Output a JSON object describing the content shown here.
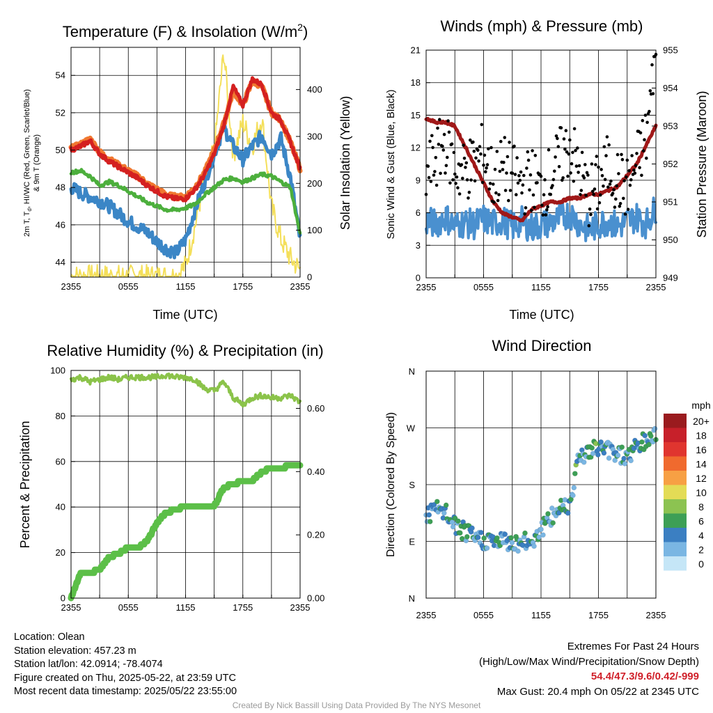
{
  "charts": {
    "temperature": {
      "title": "Temperature (F) & Insolation (W/m",
      "title_sup": "2",
      "title_close": ")",
      "ylabel_left_line1": "2m T, T",
      "ylabel_left_sub": "d",
      "ylabel_left_line1_rest": ", HI/WC (Red, Green, Scarlet/Blue)",
      "ylabel_left_line2": "& 9m T (Orange)",
      "ylabel_right": "Solar Insolation (Yellow)",
      "xlabel": "Time (UTC)"
    },
    "winds": {
      "title": "Winds (mph) & Pressure (mb)",
      "ylabel_left": "Sonic Wind & Gust (Blue, Black)",
      "ylabel_right": "Station Pressure (Maroon)",
      "xlabel": "Time (UTC)"
    },
    "humidity": {
      "title": "Relative Humidity (%) & Precipitation (in)",
      "ylabel_left": "Percent & Precipitation"
    },
    "direction": {
      "title": "Wind Direction",
      "ylabel_left": "Direction (Colored By Speed)",
      "legend_title": "mph"
    }
  },
  "colors": {
    "temp": "#d42020",
    "nine_m": "#f07830",
    "dewpoint": "#4caf3c",
    "heat_index": "#3b86c6",
    "solar": "#f4df5a",
    "wind": "#4a90cf",
    "gust": "#000000",
    "pressure": "#a01818",
    "rh": "#8bc34a",
    "precip": "#5cbf48"
  },
  "chart_data": [
    {
      "type": "line",
      "name": "temperature",
      "x_ticks": [
        "2355",
        "0555",
        "1155",
        "1755",
        "2355"
      ],
      "y_left_ticks": [
        "44",
        "46",
        "48",
        "50",
        "52",
        "54"
      ],
      "y_left_range": [
        43.2,
        55.5
      ],
      "y_right_ticks": [
        "0",
        "100",
        "200",
        "300",
        "400"
      ],
      "y_right_range": [
        0,
        490
      ],
      "x_hours": [
        0,
        1,
        2,
        3,
        4,
        5,
        6,
        7,
        8,
        9,
        10,
        11,
        12,
        13,
        14,
        15,
        16,
        17,
        18,
        19,
        20,
        21,
        22,
        23,
        24
      ],
      "series": [
        {
          "key": "temp",
          "axis": "left",
          "values": [
            50.0,
            50.2,
            50.5,
            49.8,
            49.4,
            49.1,
            48.8,
            48.5,
            48.1,
            47.8,
            47.5,
            47.4,
            47.4,
            47.9,
            48.7,
            49.8,
            51.3,
            53.4,
            52.4,
            53.8,
            53.5,
            52.0,
            51.6,
            50.4,
            49.0
          ]
        },
        {
          "key": "nine_m",
          "axis": "left",
          "values": [
            50.1,
            50.3,
            50.6,
            49.9,
            49.5,
            49.2,
            48.9,
            48.6,
            48.2,
            47.9,
            47.6,
            47.5,
            47.5,
            48.0,
            48.8,
            50.0,
            51.4,
            53.2,
            52.4,
            53.7,
            53.4,
            52.0,
            51.6,
            50.4,
            49.0
          ]
        },
        {
          "key": "dewpoint",
          "axis": "left",
          "values": [
            48.8,
            48.9,
            48.6,
            48.1,
            48.3,
            48.1,
            47.8,
            47.5,
            47.2,
            47.0,
            46.8,
            46.8,
            46.9,
            47.1,
            47.6,
            48.0,
            48.4,
            48.5,
            48.3,
            48.5,
            48.7,
            48.6,
            48.3,
            48.0,
            45.5
          ]
        },
        {
          "key": "heat_index",
          "axis": "left",
          "values": [
            48.0,
            47.7,
            47.5,
            47.3,
            47.0,
            46.6,
            46.2,
            45.9,
            45.6,
            45.1,
            44.7,
            44.5,
            45.2,
            46.8,
            48.3,
            49.8,
            51.2,
            50.2,
            49.5,
            50.2,
            50.8,
            49.8,
            50.6,
            48.5,
            45.2
          ]
        },
        {
          "key": "solar",
          "axis": "right",
          "values": [
            2,
            2,
            2,
            2,
            2,
            2,
            2,
            2,
            2,
            2,
            2,
            2,
            25,
            110,
            210,
            270,
            480,
            260,
            330,
            280,
            340,
            150,
            80,
            40,
            15
          ]
        }
      ]
    },
    {
      "type": "line",
      "name": "winds",
      "x_ticks": [
        "2355",
        "0555",
        "1155",
        "1755",
        "2355"
      ],
      "y_left_ticks": [
        "0",
        "3",
        "6",
        "9",
        "12",
        "15",
        "18",
        "21"
      ],
      "y_left_range": [
        0,
        21
      ],
      "y_right_ticks": [
        "949",
        "950",
        "951",
        "952",
        "953",
        "954",
        "955"
      ],
      "y_right_range": [
        949,
        955
      ],
      "x_hours": [
        0,
        1,
        2,
        3,
        4,
        5,
        6,
        7,
        8,
        9,
        10,
        11,
        12,
        13,
        14,
        15,
        16,
        17,
        18,
        19,
        20,
        21,
        22,
        23,
        24
      ],
      "series": [
        {
          "key": "wind",
          "axis": "left",
          "values": [
            5.2,
            5.0,
            5.6,
            4.8,
            5.1,
            4.9,
            5.4,
            5.0,
            5.3,
            4.7,
            5.2,
            4.6,
            4.9,
            5.1,
            5.5,
            6.0,
            5.0,
            4.4,
            4.9,
            5.3,
            4.7,
            5.2,
            5.6,
            5.0,
            6.5
          ]
        },
        {
          "key": "gust",
          "axis": "left",
          "values": [
            9.5,
            11.0,
            12.5,
            10.0,
            9.8,
            10.5,
            11.5,
            9.0,
            10.2,
            9.5,
            8.5,
            9.2,
            8.0,
            9.4,
            11.0,
            12.2,
            9.8,
            7.5,
            8.6,
            10.3,
            9.0,
            8.2,
            10.6,
            13.0,
            20.4
          ]
        },
        {
          "key": "pressure",
          "axis": "right",
          "values": [
            953.2,
            953.1,
            953.1,
            953.0,
            952.5,
            952.0,
            951.5,
            951.0,
            950.7,
            950.6,
            950.5,
            950.8,
            950.9,
            951.0,
            951.0,
            951.1,
            951.1,
            951.2,
            951.2,
            951.3,
            951.4,
            951.7,
            952.0,
            952.5,
            953.0
          ]
        }
      ]
    },
    {
      "type": "line",
      "name": "humidity",
      "x_ticks": [
        "2355",
        "0555",
        "1155",
        "1755",
        "2355"
      ],
      "y_left_ticks": [
        "0",
        "20",
        "40",
        "60",
        "80",
        "100"
      ],
      "y_left_range": [
        0,
        100
      ],
      "y_right_ticks": [
        "0.00",
        "0.20",
        "0.40",
        "0.60"
      ],
      "y_right_range": [
        0,
        0.72
      ],
      "x_hours": [
        0,
        1,
        2,
        3,
        4,
        5,
        6,
        7,
        8,
        9,
        10,
        11,
        12,
        13,
        14,
        15,
        16,
        17,
        18,
        19,
        20,
        21,
        22,
        23,
        24
      ],
      "series": [
        {
          "key": "rh",
          "axis": "left",
          "values": [
            96,
            97,
            95,
            96,
            97,
            96,
            97,
            97,
            97,
            97,
            98,
            97,
            97,
            96,
            92,
            91,
            95,
            88,
            85,
            88,
            89,
            88,
            88,
            89,
            86
          ]
        },
        {
          "key": "precip",
          "axis": "right",
          "values": [
            0.0,
            0.08,
            0.08,
            0.09,
            0.13,
            0.14,
            0.16,
            0.16,
            0.18,
            0.24,
            0.27,
            0.28,
            0.29,
            0.29,
            0.29,
            0.29,
            0.35,
            0.36,
            0.37,
            0.37,
            0.4,
            0.41,
            0.41,
            0.42,
            0.42
          ]
        }
      ]
    },
    {
      "type": "scatter",
      "name": "direction",
      "x_ticks": [
        "2355",
        "0555",
        "1155",
        "1755",
        "2355"
      ],
      "y_ticks": [
        "N",
        "W",
        "S",
        "E",
        "N"
      ],
      "y_range_degrees": [
        0,
        360
      ],
      "legend_labels": [
        "20+",
        "18",
        "16",
        "14",
        "12",
        "10",
        "8",
        "6",
        "4",
        "2",
        "0"
      ],
      "legend_colors": [
        "#9a1b1e",
        "#c7202a",
        "#e0352f",
        "#f06a2e",
        "#f7a044",
        "#e3dc56",
        "#8cc351",
        "#3d9f56",
        "#3b7fc2",
        "#7ab6e3",
        "#c5e6f7"
      ],
      "x_hours": [
        0,
        1,
        2,
        3,
        4,
        5,
        6,
        7,
        8,
        9,
        10,
        11,
        12,
        13,
        14,
        15,
        16,
        17,
        18,
        19,
        20,
        21,
        22,
        23,
        24
      ],
      "values_degrees": [
        130,
        140,
        135,
        115,
        105,
        95,
        92,
        90,
        90,
        88,
        88,
        90,
        110,
        125,
        145,
        150,
        230,
        230,
        240,
        235,
        230,
        225,
        240,
        250,
        260
      ]
    }
  ],
  "footer": {
    "location": "Location: Olean",
    "elevation": "Station elevation: 457.23 m",
    "latlon": "Station lat/lon: 42.0914; -78.4074",
    "created": "Figure created on Thu, 2025-05-22, at 23:59 UTC",
    "recent": "Most recent data timestamp: 2025/05/22 23:55:00",
    "extremes_title": "Extremes For Past 24 Hours",
    "extremes_legend": "(High/Low/Max Wind/Precipitation/Snow Depth)",
    "extremes_values": "54.4/47.3/9.6/0.42/-999",
    "max_gust": "Max Gust: 20.4 mph On 05/22 at 2345 UTC",
    "credit": "Created By Nick Bassill Using Data Provided By The NYS Mesonet"
  }
}
